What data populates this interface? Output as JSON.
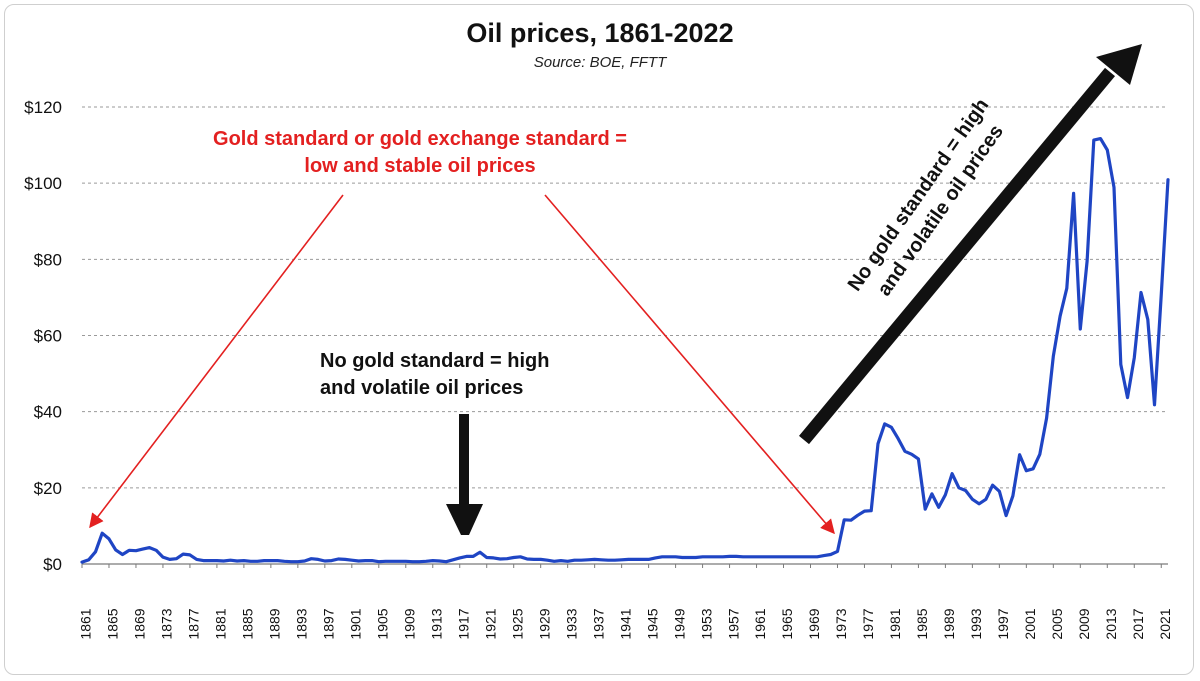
{
  "chart_data": {
    "type": "line",
    "title": "Oil prices, 1861-2022",
    "subtitle": "Source: BOE, FFTT",
    "xlabel": "",
    "ylabel": "",
    "ylim": [
      0,
      120
    ],
    "xlim": [
      1861,
      2022
    ],
    "yticks": [
      "$0",
      "$20",
      "$40",
      "$60",
      "$80",
      "$100",
      "$120"
    ],
    "yticks_values": [
      0,
      20,
      40,
      60,
      80,
      100,
      120
    ],
    "xticks": [
      1861,
      1865,
      1869,
      1873,
      1877,
      1881,
      1885,
      1889,
      1893,
      1897,
      1901,
      1905,
      1909,
      1913,
      1917,
      1921,
      1925,
      1929,
      1933,
      1937,
      1941,
      1945,
      1949,
      1953,
      1957,
      1961,
      1965,
      1969,
      1973,
      1977,
      1981,
      1985,
      1989,
      1993,
      1997,
      2001,
      2005,
      2009,
      2013,
      2017,
      2021
    ],
    "grid": "horizontal dashed",
    "line_color": "#1f45c4",
    "series": [
      {
        "name": "",
        "x": [
          1861,
          1862,
          1863,
          1864,
          1865,
          1866,
          1867,
          1868,
          1869,
          1870,
          1871,
          1872,
          1873,
          1874,
          1875,
          1876,
          1877,
          1878,
          1879,
          1880,
          1881,
          1882,
          1883,
          1884,
          1885,
          1886,
          1887,
          1888,
          1889,
          1890,
          1891,
          1892,
          1893,
          1894,
          1895,
          1896,
          1897,
          1898,
          1899,
          1900,
          1901,
          1902,
          1903,
          1904,
          1905,
          1906,
          1907,
          1908,
          1909,
          1910,
          1911,
          1912,
          1913,
          1914,
          1915,
          1916,
          1917,
          1918,
          1919,
          1920,
          1921,
          1922,
          1923,
          1924,
          1925,
          1926,
          1927,
          1928,
          1929,
          1930,
          1931,
          1932,
          1933,
          1934,
          1935,
          1936,
          1937,
          1938,
          1939,
          1940,
          1941,
          1942,
          1943,
          1944,
          1945,
          1946,
          1947,
          1948,
          1949,
          1950,
          1951,
          1952,
          1953,
          1954,
          1955,
          1956,
          1957,
          1958,
          1959,
          1960,
          1961,
          1962,
          1963,
          1964,
          1965,
          1966,
          1967,
          1968,
          1969,
          1970,
          1971,
          1972,
          1973,
          1974,
          1975,
          1976,
          1977,
          1978,
          1979,
          1980,
          1981,
          1982,
          1983,
          1984,
          1985,
          1986,
          1987,
          1988,
          1989,
          1990,
          1991,
          1992,
          1993,
          1994,
          1995,
          1996,
          1997,
          1998,
          1999,
          2000,
          2001,
          2002,
          2003,
          2004,
          2005,
          2006,
          2007,
          2008,
          2009,
          2010,
          2011,
          2012,
          2013,
          2014,
          2015,
          2016,
          2017,
          2018,
          2019,
          2020,
          2021,
          2022
        ],
        "values": [
          0.5,
          1.1,
          3.2,
          8.1,
          6.6,
          3.7,
          2.5,
          3.6,
          3.5,
          3.9,
          4.3,
          3.6,
          1.8,
          1.2,
          1.4,
          2.6,
          2.4,
          1.2,
          0.9,
          0.9,
          0.9,
          0.8,
          1.0,
          0.8,
          0.9,
          0.7,
          0.7,
          0.9,
          0.9,
          0.9,
          0.7,
          0.6,
          0.6,
          0.8,
          1.4,
          1.2,
          0.8,
          0.9,
          1.3,
          1.2,
          1.0,
          0.8,
          0.9,
          0.9,
          0.6,
          0.7,
          0.7,
          0.7,
          0.7,
          0.6,
          0.6,
          0.7,
          0.9,
          0.8,
          0.6,
          1.1,
          1.6,
          2.0,
          2.0,
          3.1,
          1.7,
          1.6,
          1.3,
          1.4,
          1.7,
          1.9,
          1.3,
          1.2,
          1.2,
          1.0,
          0.7,
          0.9,
          0.7,
          1.0,
          1.0,
          1.1,
          1.2,
          1.1,
          1.0,
          1.0,
          1.1,
          1.2,
          1.2,
          1.2,
          1.2,
          1.6,
          1.9,
          1.9,
          1.9,
          1.7,
          1.7,
          1.7,
          1.9,
          1.9,
          1.9,
          1.9,
          2.0,
          2.0,
          1.9,
          1.9,
          1.9,
          1.9,
          1.9,
          1.9,
          1.9,
          1.9,
          1.9,
          1.9,
          1.9,
          1.9,
          2.2,
          2.5,
          3.3,
          11.6,
          11.5,
          12.8,
          13.9,
          14.0,
          31.6,
          36.8,
          35.9,
          32.9,
          29.6,
          28.8,
          27.6,
          14.4,
          18.4,
          14.9,
          18.2,
          23.7,
          20.0,
          19.3,
          17.0,
          15.8,
          17.0,
          20.7,
          19.1,
          12.7,
          17.9,
          28.7,
          24.5,
          25.0,
          28.8,
          38.3,
          54.5,
          65.1,
          72.4,
          97.3,
          61.7,
          79.5,
          111.3,
          111.7,
          108.7,
          98.9,
          52.4,
          43.7,
          54.2,
          71.3,
          64.2,
          41.8,
          70.9,
          100.9
        ]
      }
    ],
    "annotations": {
      "red_text": [
        "Gold standard or gold exchange standard =",
        "low and stable oil prices"
      ],
      "black_text": [
        "No gold standard = high",
        "and volatile oil prices"
      ],
      "rotated_text": [
        "No gold standard = high",
        "and volatile oil prices"
      ]
    },
    "colors": {
      "annotation_red": "#e32020",
      "annotation_black": "#111111"
    }
  }
}
